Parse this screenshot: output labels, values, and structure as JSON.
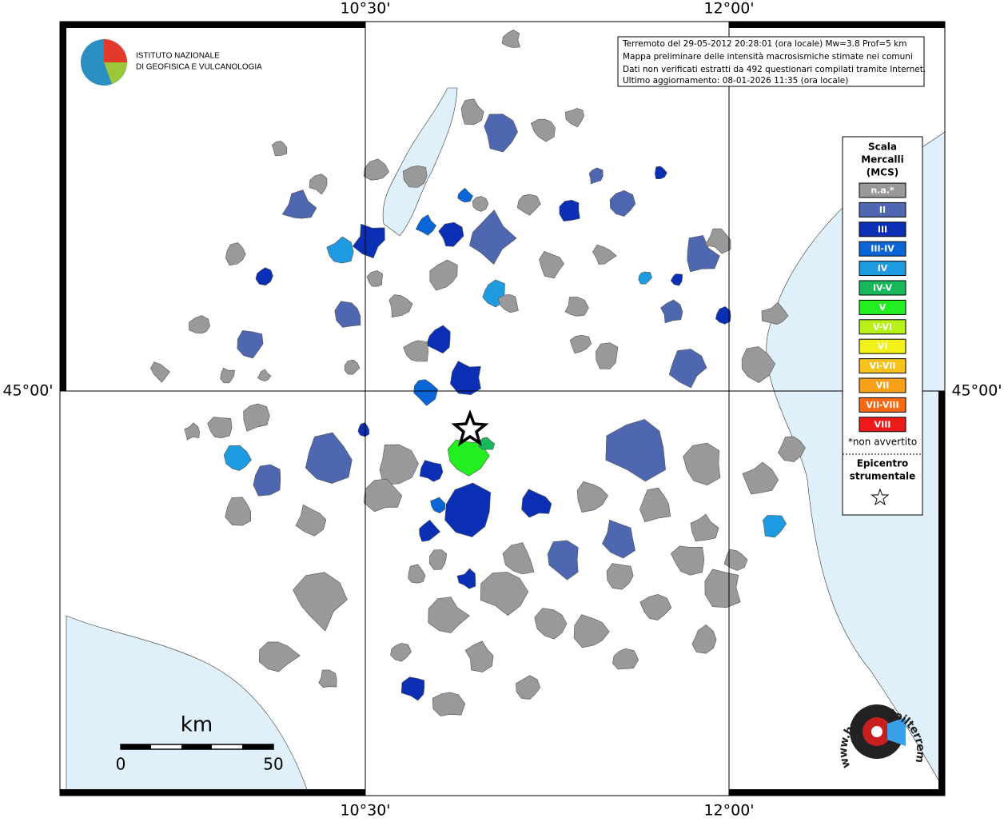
{
  "header": {
    "lines": [
      "Terremoto del 29-05-2012 20:28:01 (ora locale) Mw=3.8 Prof=5 km",
      "Mappa preliminare delle intensità macrosismiche stimate nei comuni",
      "Dati non verificati estratti da 492 questionari compilati tramite Internet.",
      "Ultimo aggiornamento: 08-01-2026 11:35 (ora locale)"
    ]
  },
  "logo": {
    "lines": [
      "ISTITUTO NAZIONALE",
      "DI GEOFISICA E VULCANOLOGIA"
    ]
  },
  "grid": {
    "longitudes": [
      "10°30'",
      "12°00'"
    ],
    "latitudes": [
      "45°00'"
    ]
  },
  "legend": {
    "title": [
      "Scala",
      "Mercalli",
      "(MCS)"
    ],
    "items": [
      {
        "label": "n.a.*",
        "color": "#999999"
      },
      {
        "label": "II",
        "color": "#4f67b0"
      },
      {
        "label": "III",
        "color": "#0a2fb5"
      },
      {
        "label": "III-IV",
        "color": "#0a66d6"
      },
      {
        "label": "IV",
        "color": "#1e9be0"
      },
      {
        "label": "IV-V",
        "color": "#16b85a"
      },
      {
        "label": "V",
        "color": "#22ee22"
      },
      {
        "label": "V-VI",
        "color": "#b8f01a"
      },
      {
        "label": "VI",
        "color": "#f2f21a"
      },
      {
        "label": "VI-VII",
        "color": "#f7c21a"
      },
      {
        "label": "VII",
        "color": "#f7a01a"
      },
      {
        "label": "VII-VIII",
        "color": "#f76a12"
      },
      {
        "label": "VIII",
        "color": "#ee1a1a"
      }
    ],
    "note": "*non avvertito",
    "epicenter": [
      "Epicentro",
      "strumentale"
    ]
  },
  "scalebar": {
    "unit": "km",
    "labels": [
      "0",
      "50"
    ]
  },
  "badge": "www.haisentitoilterremoto.it"
}
